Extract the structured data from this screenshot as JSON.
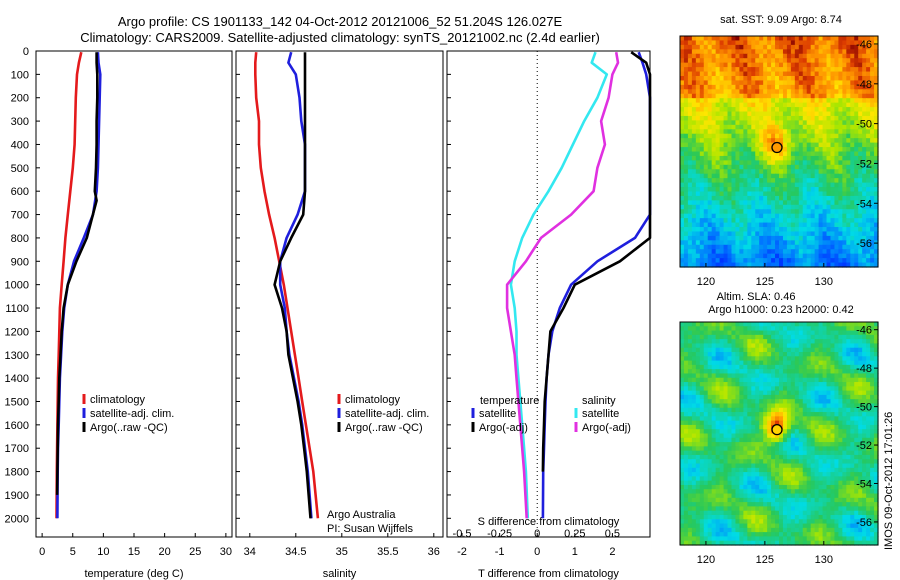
{
  "header": {
    "line1": "Argo profile: CS 1901133_142 04-Oct-2012 20121006_52 51.204S 126.027E",
    "line2": "Climatology: CARS2009. Satellite-adjusted climatology: synTS_20121002.nc (2.4d earlier)"
  },
  "colors": {
    "climatology": "#e41a1c",
    "satellite": "#1f1fdd",
    "argo": "#000000",
    "sal_satellite": "#33e8f0",
    "sal_argo": "#e030e0"
  },
  "chart_data": [
    {
      "type": "line",
      "xlabel": "temperature (deg C)",
      "ylabel": "",
      "xlim": [
        -1,
        31
      ],
      "ylim": [
        2080,
        0
      ],
      "xticks": [
        0,
        5,
        10,
        15,
        20,
        25,
        30
      ],
      "yticks": [
        0,
        100,
        200,
        300,
        400,
        500,
        600,
        700,
        800,
        900,
        1000,
        1100,
        1200,
        1300,
        1400,
        1500,
        1600,
        1700,
        1800,
        1900,
        2000
      ],
      "legend": [
        "climatology",
        "satellite-adj. clim.",
        "Argo(..raw -QC)"
      ],
      "legend_position": "lower-right",
      "series": [
        {
          "name": "climatology",
          "color_key": "climatology",
          "x": [
            6.4,
            6.0,
            5.7,
            5.5,
            5.4,
            5.3,
            5.0,
            4.6,
            4.2,
            3.8,
            3.5,
            3.2,
            2.9,
            2.8,
            2.7,
            2.6,
            2.55,
            2.5,
            2.45,
            2.4,
            2.35
          ],
          "y": [
            5,
            50,
            100,
            200,
            300,
            400,
            500,
            600,
            700,
            800,
            900,
            1000,
            1100,
            1200,
            1300,
            1400,
            1500,
            1600,
            1700,
            1800,
            2000
          ]
        },
        {
          "name": "satellite-adj. clim.",
          "color_key": "satellite",
          "x": [
            9.1,
            9.2,
            9.5,
            9.4,
            9.3,
            9.2,
            9.1,
            8.9,
            8.3,
            6.8,
            5.2,
            4.2,
            3.6,
            3.3,
            3.1,
            2.9,
            2.8,
            2.7,
            2.6,
            2.55,
            2.5
          ],
          "y": [
            5,
            50,
            100,
            200,
            300,
            400,
            500,
            600,
            700,
            800,
            900,
            1000,
            1100,
            1200,
            1300,
            1400,
            1500,
            1600,
            1700,
            1800,
            2000
          ]
        },
        {
          "name": "Argo(..raw -QC)",
          "color_key": "argo",
          "x": [
            8.9,
            8.9,
            9.0,
            9.0,
            8.9,
            8.9,
            8.8,
            8.6,
            8.9,
            7.3,
            5.6,
            4.2,
            3.5,
            3.2,
            3.0,
            2.8,
            2.7,
            2.6,
            2.55,
            2.5,
            2.45
          ],
          "y": [
            5,
            50,
            100,
            200,
            300,
            400,
            500,
            600,
            640,
            800,
            900,
            1000,
            1100,
            1200,
            1300,
            1400,
            1500,
            1600,
            1700,
            1800,
            1900
          ]
        }
      ]
    },
    {
      "type": "line",
      "xlabel": "salinity",
      "ylabel": "",
      "xlim": [
        33.85,
        36.1
      ],
      "ylim": [
        2080,
        0
      ],
      "xticks": [
        34,
        34.5,
        35,
        35.5,
        36
      ],
      "legend": [
        "climatology",
        "satellite-adj. clim.",
        "Argo(..raw -QC)"
      ],
      "legend_position": "lower-right",
      "annotation": [
        "Argo Australia",
        "PI: Susan Wijffels"
      ],
      "series": [
        {
          "name": "climatology",
          "color_key": "climatology",
          "x": [
            34.07,
            34.06,
            34.06,
            34.07,
            34.1,
            34.1,
            34.12,
            34.16,
            34.21,
            34.27,
            34.32,
            34.37,
            34.41,
            34.45,
            34.49,
            34.53,
            34.57,
            34.61,
            34.65,
            34.69,
            34.74
          ],
          "y": [
            5,
            50,
            100,
            200,
            300,
            400,
            500,
            600,
            700,
            800,
            900,
            1000,
            1100,
            1200,
            1300,
            1400,
            1500,
            1600,
            1700,
            1800,
            2000
          ]
        },
        {
          "name": "satellite-adj. clim.",
          "color_key": "satellite",
          "x": [
            34.45,
            34.42,
            34.5,
            34.54,
            34.56,
            34.6,
            34.6,
            34.6,
            34.52,
            34.4,
            34.33,
            34.33,
            34.38,
            34.4,
            34.43,
            34.48,
            34.53,
            34.57,
            34.6,
            34.63,
            34.67
          ],
          "y": [
            5,
            50,
            100,
            200,
            300,
            400,
            500,
            600,
            700,
            800,
            900,
            1000,
            1100,
            1200,
            1300,
            1400,
            1500,
            1600,
            1700,
            1800,
            2000
          ]
        },
        {
          "name": "Argo(..raw -QC)",
          "color_key": "argo",
          "x": [
            34.6,
            34.6,
            34.6,
            34.6,
            34.6,
            34.6,
            34.6,
            34.6,
            34.58,
            34.45,
            34.33,
            34.27,
            34.35,
            34.4,
            34.42,
            34.47,
            34.52,
            34.56,
            34.59,
            34.62,
            34.66
          ],
          "y": [
            5,
            50,
            100,
            200,
            300,
            400,
            500,
            600,
            700,
            800,
            900,
            1000,
            1100,
            1200,
            1300,
            1400,
            1500,
            1600,
            1700,
            1800,
            2000
          ]
        }
      ]
    },
    {
      "type": "line",
      "xlabel": "T difference from climatology",
      "title_bottom": "S difference from climatology",
      "xlim": [
        -2.4,
        3.0
      ],
      "ylim": [
        2080,
        0
      ],
      "xticks_T": [
        -2,
        -1,
        0,
        1,
        2
      ],
      "xticks_S": [
        "-0.5",
        "-0.25",
        "0",
        "0.25",
        "0.5"
      ],
      "legend": [
        "temperature",
        "satellite",
        "Argo(-adj)",
        "salinity",
        "satellite",
        "Argo(-adj)"
      ],
      "legend_position": "lower-center",
      "series": [
        {
          "name": "satellite",
          "group": "temperature",
          "color_key": "satellite",
          "x": [
            2.7,
            2.8,
            2.9,
            3.0,
            3.0,
            3.0,
            3.0,
            3.0,
            3.0,
            2.6,
            1.6,
            0.9,
            0.6,
            0.4,
            0.3,
            0.25,
            0.22,
            0.2,
            0.18,
            0.16,
            0.15
          ],
          "y": [
            5,
            50,
            100,
            200,
            300,
            400,
            500,
            600,
            700,
            800,
            900,
            1000,
            1100,
            1200,
            1300,
            1400,
            1500,
            1600,
            1700,
            1800,
            2000
          ]
        },
        {
          "name": "Argo(-adj)",
          "group": "temperature",
          "color_key": "argo",
          "x": [
            2.5,
            2.9,
            3.0,
            3.0,
            3.0,
            3.0,
            3.0,
            3.0,
            3.0,
            3.0,
            2.2,
            1.0,
            0.7,
            0.35,
            0.3,
            0.25,
            0.2,
            0.18,
            0.16,
            0.15
          ],
          "y": [
            5,
            50,
            100,
            200,
            300,
            400,
            500,
            600,
            700,
            800,
            900,
            1000,
            1100,
            1200,
            1300,
            1400,
            1500,
            1600,
            1700,
            1800
          ]
        },
        {
          "name": "satellite",
          "group": "salinity",
          "color_key": "sal_satellite",
          "x": [
            1.55,
            1.45,
            1.85,
            1.6,
            1.25,
            0.95,
            0.65,
            0.3,
            -0.1,
            -0.4,
            -0.6,
            -0.7,
            -0.6,
            -0.55,
            -0.55,
            -0.5,
            -0.45,
            -0.4,
            -0.35,
            -0.3,
            -0.25
          ],
          "y": [
            5,
            50,
            100,
            200,
            300,
            400,
            500,
            600,
            700,
            800,
            900,
            1000,
            1100,
            1200,
            1300,
            1400,
            1500,
            1600,
            1700,
            1800,
            2000
          ]
        },
        {
          "name": "Argo(-adj)",
          "group": "salinity",
          "color_key": "sal_argo",
          "x": [
            2.1,
            2.15,
            2.0,
            1.9,
            1.7,
            1.8,
            1.6,
            1.5,
            0.9,
            0.1,
            -0.3,
            -0.8,
            -0.8,
            -0.7,
            -0.6,
            -0.55,
            -0.5,
            -0.45,
            -0.4,
            -0.35,
            -0.28
          ],
          "y": [
            5,
            50,
            100,
            200,
            300,
            400,
            500,
            600,
            700,
            800,
            900,
            1000,
            1100,
            1200,
            1300,
            1400,
            1500,
            1600,
            1700,
            1800,
            2000
          ]
        }
      ]
    },
    {
      "type": "heatmap",
      "title": "sat. SST: 9.09 Argo: 8.74",
      "xticks": [
        120,
        125,
        130
      ],
      "yticks": [
        -46,
        -48,
        -50,
        -52,
        -54,
        -56
      ],
      "xlim": [
        117.8,
        134.6
      ],
      "ylim": [
        -57.2,
        -45.6
      ],
      "marker": {
        "lon": 126.03,
        "lat": -51.2
      }
    },
    {
      "type": "heatmap",
      "title_line1": "Altim. SLA: 0.46",
      "title_line2": "Argo h1000: 0.23 h2000: 0.42",
      "xticks": [
        120,
        125,
        130
      ],
      "yticks": [
        -46,
        -48,
        -50,
        -52,
        -54,
        -56
      ],
      "xlim": [
        117.8,
        134.6
      ],
      "ylim": [
        -57.2,
        -45.6
      ],
      "marker": {
        "lon": 126.03,
        "lat": -51.2
      },
      "side_label": "IMOS 09-Oct-2012 17:01:26"
    }
  ]
}
